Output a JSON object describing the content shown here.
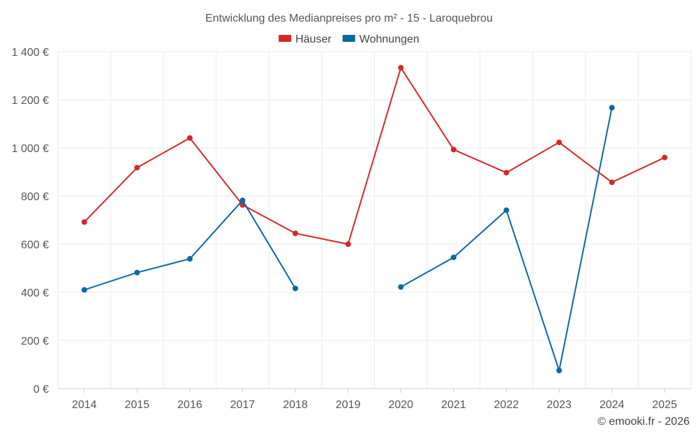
{
  "chart_data": {
    "type": "line",
    "title": "Entwicklung des Medianpreises pro m² - 15 - Laroquebrou",
    "categories": [
      "2014",
      "2015",
      "2016",
      "2017",
      "2018",
      "2019",
      "2020",
      "2021",
      "2022",
      "2023",
      "2024",
      "2025"
    ],
    "y_ticks": [
      "0 €",
      "200 €",
      "400 €",
      "600 €",
      "800 €",
      "1 000 €",
      "1 200 €",
      "1 400 €"
    ],
    "ylim": [
      0,
      1400
    ],
    "grid": true,
    "legend_position": "top-center",
    "series": [
      {
        "name": "Häuser",
        "color": "#d62728",
        "values": [
          692,
          918,
          1041,
          763,
          645,
          600,
          1333,
          993,
          897,
          1023,
          857,
          960
        ]
      },
      {
        "name": "Wohnungen",
        "color": "#0868a0",
        "values": [
          410,
          482,
          539,
          782,
          416,
          null,
          422,
          545,
          741,
          75,
          1167,
          null
        ]
      }
    ],
    "credit": "© emooki.fr - 2026"
  }
}
